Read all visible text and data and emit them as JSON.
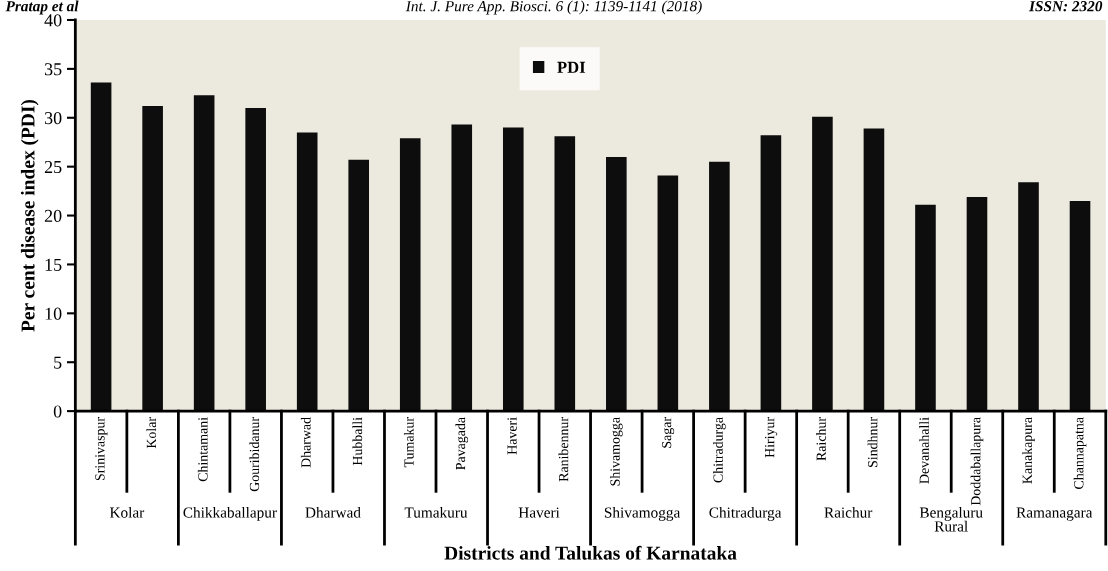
{
  "chart_data": {
    "type": "bar",
    "xlabel": "Districts and Talukas of Karnataka",
    "ylabel": "Per cent disease index (PDI)",
    "categories": [
      "Srinivaspur",
      "Kolar",
      "Chintamani",
      "Gouribidanur",
      "Dharwad",
      "Hubballi",
      "Tumakur",
      "Pavagada",
      "Haveri",
      "Ranibennur",
      "Shivamogga",
      "Sagar",
      "Chitradurga",
      "Hiriyur",
      "Raichur",
      "Sindhnur",
      "Devanahalli",
      "Doddaballapura",
      "Kanakapura",
      "Channapatna"
    ],
    "series": [
      {
        "name": "PDI",
        "color": "#0d0d0d",
        "values": [
          33.6,
          31.2,
          32.3,
          31.0,
          28.5,
          25.7,
          27.9,
          29.3,
          29.0,
          28.1,
          26.0,
          24.1,
          25.5,
          28.2,
          30.1,
          28.9,
          21.1,
          21.9,
          23.4,
          21.5
        ]
      }
    ],
    "ylim": [
      0,
      40
    ],
    "yticks": [
      0,
      5,
      10,
      15,
      20,
      25,
      30,
      35,
      40
    ],
    "grid": false,
    "legend": "top",
    "annotations": [
      "Kolar",
      "Chikkaballapur",
      "Dharwad",
      "Tumakuru",
      "Haveri",
      "Shivamogga",
      "Chitradurga",
      "Raichur",
      "Bengaluru\nRural",
      "Ramanagara",
      "Pratap et al",
      "Int. J. Pure App. Biosci. 6 (1): 1139-1141 (2018)",
      "ISSN: 2320"
    ]
  }
}
